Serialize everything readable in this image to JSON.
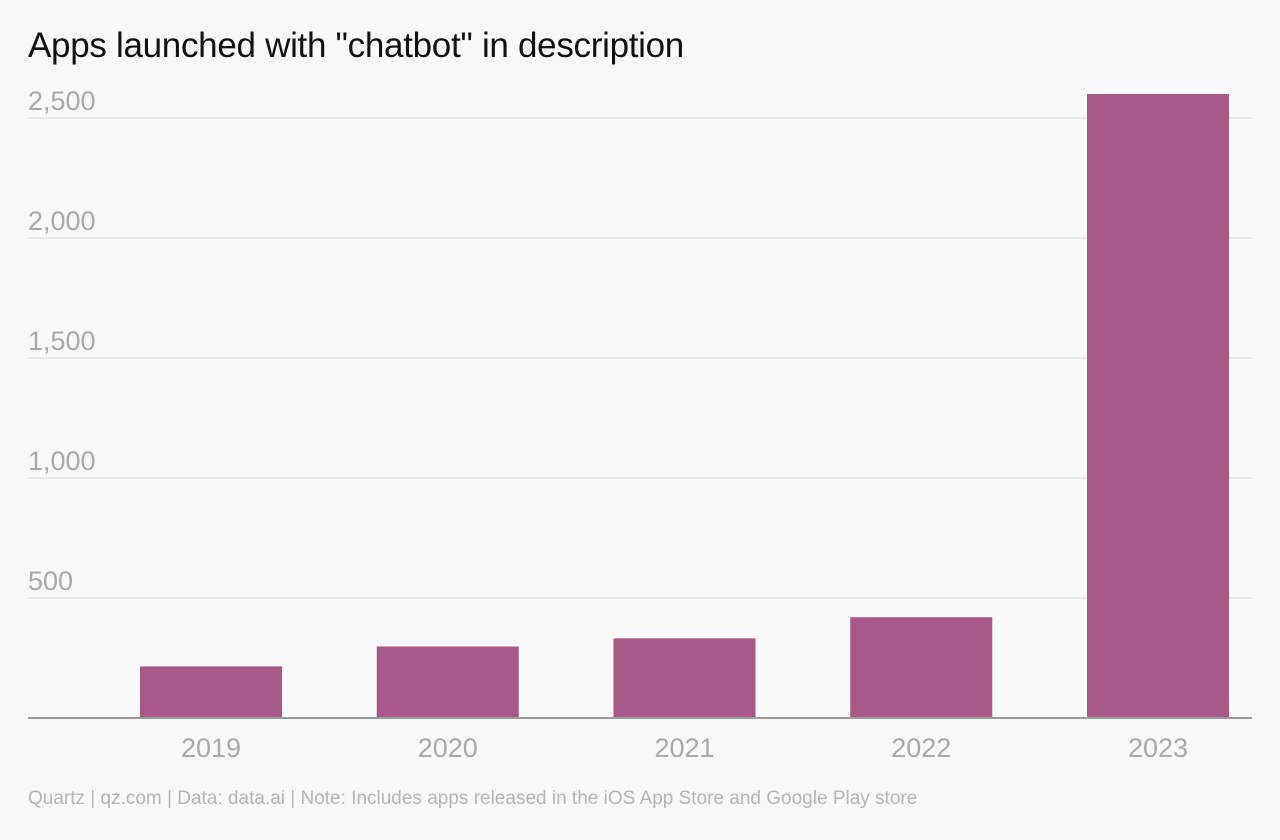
{
  "chart_data": {
    "type": "bar",
    "title": "Apps launched with \"chatbot\" in description",
    "categories": [
      "2019",
      "2020",
      "2021",
      "2022",
      "2023"
    ],
    "values": [
      215,
      298,
      332,
      420,
      2600
    ],
    "ylim": [
      0,
      2500
    ],
    "yticks": [
      0,
      500,
      1000,
      1500,
      2000,
      2500
    ],
    "ytick_labels": [
      "",
      "500",
      "1,000",
      "1,500",
      "2,000",
      "2,500"
    ],
    "xlabel": "",
    "ylabel": "",
    "grid": true,
    "legend": "none"
  },
  "footer": "Quartz | qz.com | Data: data.ai | Note: Includes apps released in the iOS App Store and Google Play store",
  "colors": {
    "bar": "#a85886",
    "grid": "#e3e3e3",
    "axis": "#9a9a9a",
    "tick_label": "#a9a9a9",
    "title": "#111111",
    "footer": "#b5b5b5"
  }
}
